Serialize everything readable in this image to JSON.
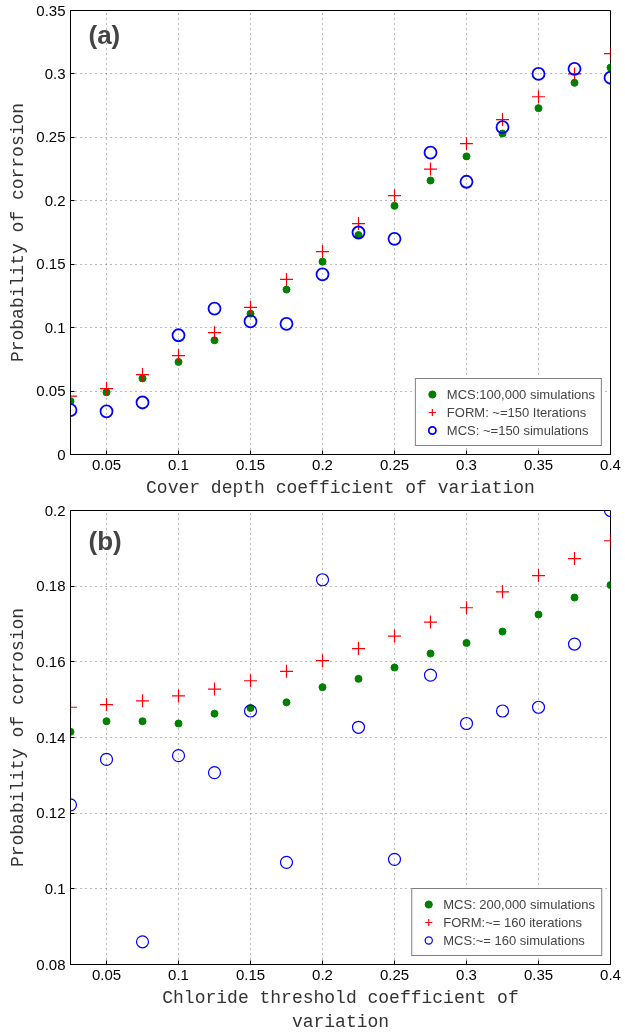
{
  "chart_data": [
    {
      "type": "scatter",
      "xlabel": "Cover depth coefficient of variation",
      "ylabel": "Probability of corrosion",
      "annotations": [
        "(a)"
      ],
      "x": [
        0.025,
        0.05,
        0.075,
        0.1,
        0.125,
        0.15,
        0.175,
        0.2,
        0.225,
        0.25,
        0.275,
        0.3,
        0.325,
        0.35,
        0.375,
        0.4
      ],
      "series": [
        {
          "name": "MCS:100,000 simulations",
          "color": "#008000",
          "marker": "circle",
          "values": [
            0.042,
            0.049,
            0.06,
            0.073,
            0.09,
            0.111,
            0.13,
            0.152,
            0.173,
            0.196,
            0.216,
            0.235,
            0.253,
            0.273,
            0.293,
            0.305
          ]
        },
        {
          "name": "FORM: ~=150 Iterations",
          "color": "#ff0000",
          "marker": "cross",
          "values": [
            0.046,
            0.052,
            0.063,
            0.078,
            0.096,
            0.116,
            0.138,
            0.16,
            0.182,
            0.204,
            0.225,
            0.245,
            0.264,
            0.282,
            0.3,
            0.316
          ]
        },
        {
          "name": "MCS: ~=150 simulations",
          "color": "#0000ff",
          "marker": "circle",
          "values": [
            0.035,
            0.034,
            0.041,
            0.094,
            0.115,
            0.105,
            0.103,
            0.142,
            0.175,
            0.17,
            0.238,
            0.215,
            0.258,
            0.3,
            0.304,
            0.297
          ]
        }
      ],
      "xlim": [
        0.025,
        0.4
      ],
      "xticks": [
        0.05,
        0.1,
        0.15,
        0.2,
        0.25,
        0.3,
        0.35,
        0.4
      ],
      "ylim": [
        0,
        0.35
      ],
      "yticks": [
        0,
        0.05,
        0.1,
        0.15,
        0.2,
        0.25,
        0.3,
        0.35
      ],
      "grid": true,
      "legend": "bottom right"
    },
    {
      "type": "scatter",
      "xlabel": "Chloride threshold coefficient of variation",
      "ylabel": "Probability of corrosion",
      "annotations": [
        "(b)"
      ],
      "x": [
        0.025,
        0.05,
        0.075,
        0.1,
        0.125,
        0.15,
        0.175,
        0.2,
        0.225,
        0.25,
        0.275,
        0.3,
        0.325,
        0.35,
        0.375,
        0.4
      ],
      "series": [
        {
          "name": "MCS: 200,000 simulations",
          "color": "#008000",
          "marker": "circle",
          "values": [
            0.1415,
            0.1443,
            0.1443,
            0.1437,
            0.1463,
            0.1478,
            0.1493,
            0.1533,
            0.1555,
            0.1585,
            0.1622,
            0.165,
            0.168,
            0.1725,
            0.177,
            0.1803
          ]
        },
        {
          "name": "FORM:~= 160 iterations",
          "color": "#ff0000",
          "marker": "cross",
          "values": [
            0.148,
            0.1487,
            0.1497,
            0.151,
            0.1528,
            0.155,
            0.1575,
            0.1603,
            0.1635,
            0.1668,
            0.1705,
            0.1743,
            0.1785,
            0.1828,
            0.1873,
            0.192
          ]
        },
        {
          "name": "MCS:~= 160 simulations",
          "color": "#0000ff",
          "marker": "circle",
          "values": [
            0.1222,
            0.1342,
            0.086,
            0.1352,
            0.1307,
            0.147,
            0.107,
            0.1817,
            0.1427,
            0.1078,
            0.1565,
            0.1437,
            0.147,
            0.148,
            0.1647,
            0.2
          ]
        }
      ],
      "xlim": [
        0.025,
        0.4
      ],
      "xticks": [
        0.05,
        0.1,
        0.15,
        0.2,
        0.25,
        0.3,
        0.35,
        0.4
      ],
      "ylim": [
        0.08,
        0.2
      ],
      "yticks": [
        0.08,
        0.1,
        0.12,
        0.14,
        0.16,
        0.18,
        0.2
      ],
      "grid": true,
      "legend": "bottom right"
    }
  ]
}
